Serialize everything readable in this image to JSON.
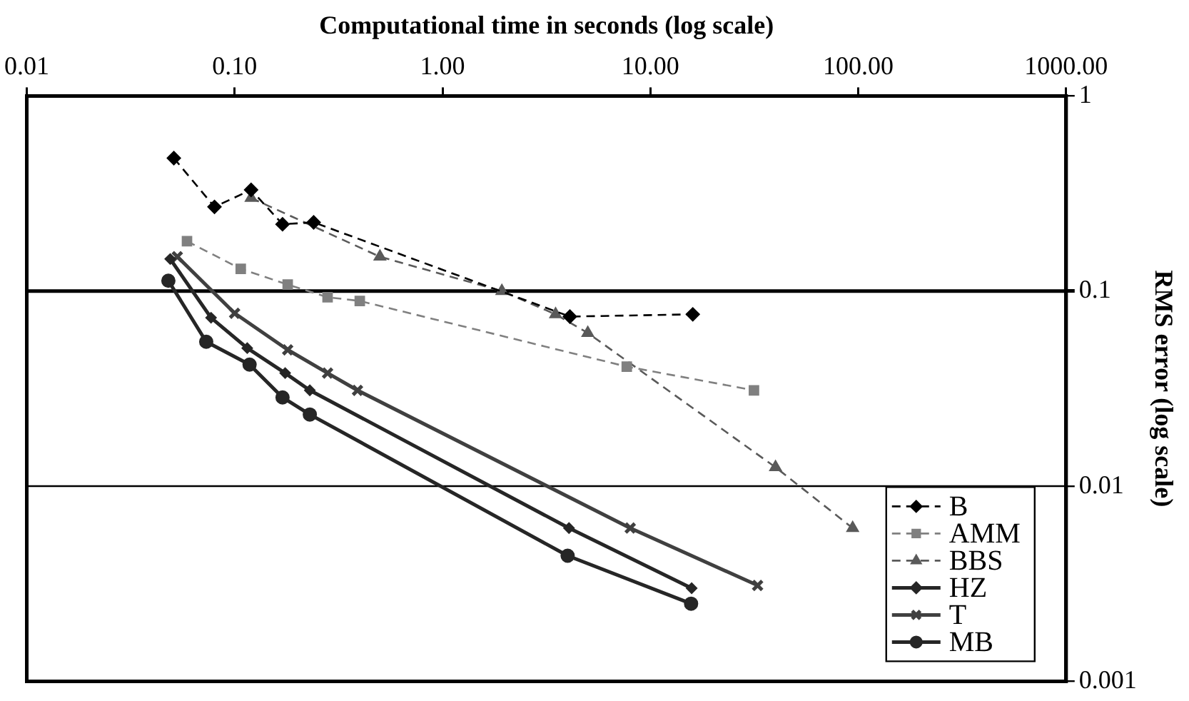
{
  "chart_data": {
    "type": "line",
    "xlabel": "Computational time in seconds (log scale)",
    "ylabel": "RMS error (log scale)",
    "log": "xy",
    "legend": "bottom right",
    "ref_lines": [
      {
        "axis": "y",
        "value": 0.1
      },
      {
        "axis": "y",
        "value": 0.01
      }
    ],
    "xlim": [
      0.01,
      1000
    ],
    "ylim": [
      0.001,
      1
    ],
    "xticks": [
      {
        "value": 0.01,
        "label": "0.01"
      },
      {
        "value": 0.1,
        "label": "0.10"
      },
      {
        "value": 1,
        "label": "1.00"
      },
      {
        "value": 10,
        "label": "10.00"
      },
      {
        "value": 100,
        "label": "100.00"
      },
      {
        "value": 1000,
        "label": "1000.00"
      }
    ],
    "yticks": [
      0.001,
      0.01,
      0.1,
      1
    ],
    "series": [
      {
        "name": "B",
        "color": "#000000",
        "marker": "diamond",
        "line_style": "dashed",
        "x": [
          0.051,
          0.08,
          0.12,
          0.17,
          0.24,
          4.1,
          16
        ],
        "values": [
          0.48,
          0.27,
          0.33,
          0.22,
          0.225,
          0.074,
          0.076
        ]
      },
      {
        "name": "AMM",
        "color": "#808080",
        "marker": "square",
        "line_style": "dashed",
        "x": [
          0.059,
          0.107,
          0.18,
          0.28,
          0.4,
          7.7,
          31.5
        ],
        "values": [
          0.18,
          0.13,
          0.108,
          0.093,
          0.089,
          0.041,
          0.031
        ]
      },
      {
        "name": "BBS",
        "color": "#5a5a5a",
        "marker": "triangle",
        "line_style": "dashed",
        "x": [
          0.12,
          0.5,
          1.93,
          3.5,
          5,
          40,
          94
        ],
        "values": [
          0.3,
          0.15,
          0.1,
          0.076,
          0.061,
          0.0125,
          0.0061
        ]
      },
      {
        "name": "HZ",
        "color": "#262626",
        "marker": "diamond",
        "line_style": "solid",
        "x": [
          0.049,
          0.077,
          0.115,
          0.175,
          0.23,
          4.06,
          15.8
        ],
        "values": [
          0.146,
          0.073,
          0.051,
          0.038,
          0.031,
          0.0061,
          0.003
        ]
      },
      {
        "name": "T",
        "color": "#404040",
        "marker": "cross",
        "line_style": "solid",
        "x": [
          0.053,
          0.1,
          0.18,
          0.28,
          0.39,
          8,
          32.8
        ],
        "values": [
          0.15,
          0.077,
          0.05,
          0.038,
          0.031,
          0.0061,
          0.0031
        ]
      },
      {
        "name": "MB",
        "color": "#262626",
        "marker": "circle",
        "line_style": "solid",
        "x": [
          0.048,
          0.073,
          0.118,
          0.17,
          0.23,
          4,
          15.7
        ],
        "values": [
          0.113,
          0.055,
          0.042,
          0.0285,
          0.0233,
          0.0044,
          0.0025
        ]
      }
    ]
  }
}
